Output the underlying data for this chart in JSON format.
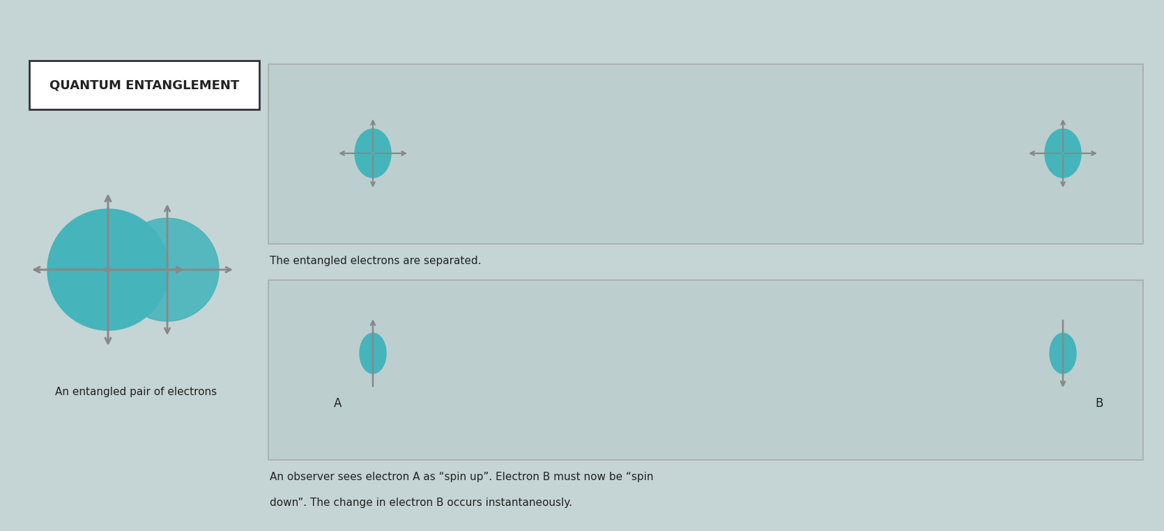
{
  "bg_color": "#c5d4d4",
  "panel_bg": "#bccece",
  "teal_color": "#45b5bb",
  "arrow_color": "#888888",
  "title_text": "QUANTUM ENTANGLEMENT",
  "caption1": "An entangled pair of electrons",
  "panel1_caption": "The entangled electrons are separated.",
  "panel2_line1": "An observer sees electron A as “spin up”. Electron B must now be “spin",
  "panel2_line2": "down”. The change in electron B occurs instantaneously.",
  "label_a": "A",
  "label_b": "B",
  "panel_border_color": "#aaaaaa",
  "text_color": "#222222"
}
